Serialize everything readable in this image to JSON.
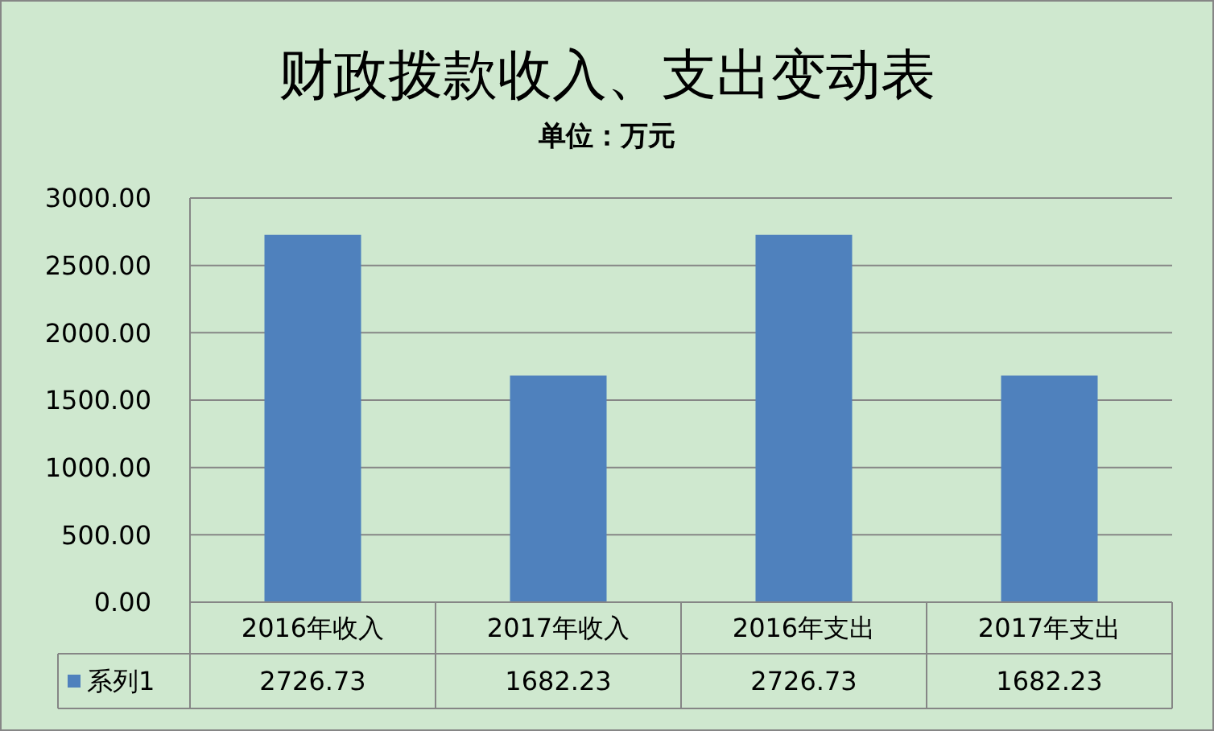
{
  "chart_data": {
    "type": "bar",
    "title": "财政拨款收入、支出变动表",
    "subtitle": "单位：万元",
    "categories": [
      "2016年收入",
      "2017年收入",
      "2016年支出",
      "2017年支出"
    ],
    "series": [
      {
        "name": "系列1",
        "color": "#4f81bd",
        "values": [
          2726.73,
          1682.23,
          2726.73,
          1682.23
        ]
      }
    ],
    "ylim": [
      0,
      3000
    ],
    "yticks": [
      {
        "value": 0,
        "label": "0.00"
      },
      {
        "value": 500,
        "label": "500.00"
      },
      {
        "value": 1000,
        "label": "1000.00"
      },
      {
        "value": 1500,
        "label": "1500.00"
      },
      {
        "value": 2000,
        "label": "2000.00"
      },
      {
        "value": 2500,
        "label": "2500.00"
      },
      {
        "value": 3000,
        "label": "3000.00"
      }
    ],
    "grid": "y",
    "data_labels": true,
    "legend": "bottom"
  }
}
